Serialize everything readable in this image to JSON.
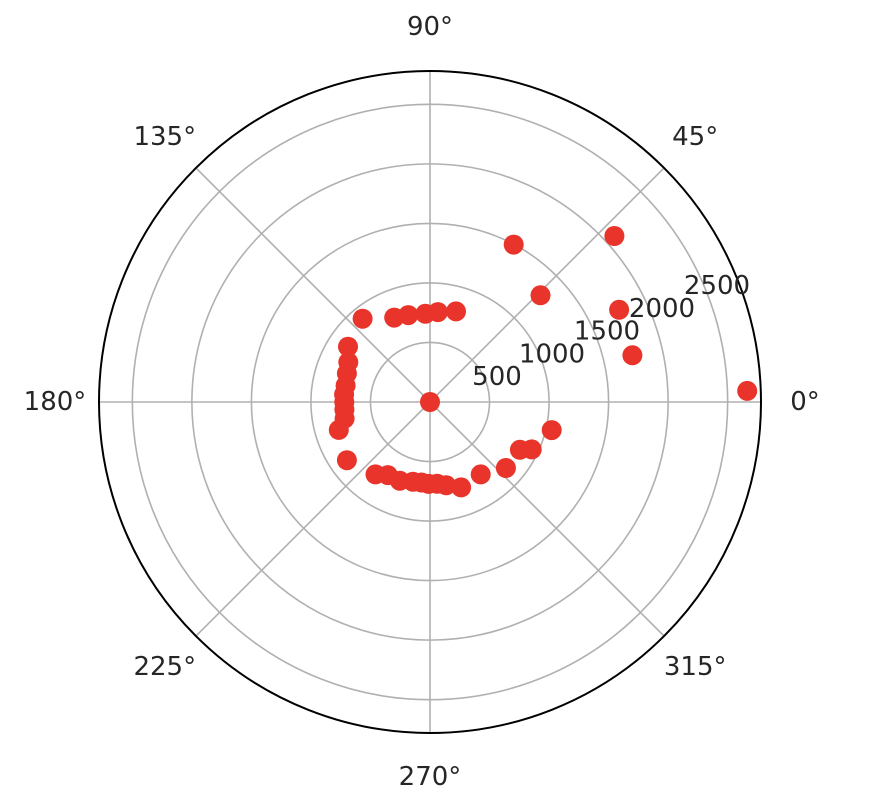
{
  "chart_data": {
    "type": "scatter",
    "projection": "polar",
    "title": "",
    "theta_ticks": [
      {
        "deg": 0,
        "label": "0°"
      },
      {
        "deg": 45,
        "label": "45°"
      },
      {
        "deg": 90,
        "label": "90°"
      },
      {
        "deg": 135,
        "label": "135°"
      },
      {
        "deg": 180,
        "label": "180°"
      },
      {
        "deg": 225,
        "label": "225°"
      },
      {
        "deg": 270,
        "label": "270°"
      },
      {
        "deg": 315,
        "label": "315°"
      }
    ],
    "r_ticks": [
      {
        "value": 500,
        "label": "500"
      },
      {
        "value": 1000,
        "label": "1000"
      },
      {
        "value": 1500,
        "label": "1500"
      },
      {
        "value": 2000,
        "label": "2000"
      },
      {
        "value": 2500,
        "label": "2500"
      }
    ],
    "rlim": [
      0,
      2780
    ],
    "grid": true,
    "color": "#e8342a",
    "points": [
      {
        "theta": 0,
        "r": 0
      },
      {
        "theta": 2,
        "r": 2666
      },
      {
        "theta": 13,
        "r": 1745
      },
      {
        "theta": 26,
        "r": 1767
      },
      {
        "theta": 44,
        "r": 1290
      },
      {
        "theta": 42,
        "r": 2084
      },
      {
        "theta": 62,
        "r": 1497
      },
      {
        "theta": 74,
        "r": 792
      },
      {
        "theta": 85,
        "r": 758
      },
      {
        "theta": 93,
        "r": 742
      },
      {
        "theta": 104,
        "r": 752
      },
      {
        "theta": 113,
        "r": 770
      },
      {
        "theta": 129,
        "r": 900
      },
      {
        "theta": 146,
        "r": 831
      },
      {
        "theta": 154,
        "r": 763
      },
      {
        "theta": 161,
        "r": 738
      },
      {
        "theta": 169,
        "r": 722
      },
      {
        "theta": 175,
        "r": 724
      },
      {
        "theta": 180,
        "r": 720
      },
      {
        "theta": 185,
        "r": 722
      },
      {
        "theta": 191,
        "r": 731
      },
      {
        "theta": 197,
        "r": 801
      },
      {
        "theta": 215,
        "r": 852
      },
      {
        "theta": 233,
        "r": 761
      },
      {
        "theta": 240,
        "r": 709
      },
      {
        "theta": 249,
        "r": 708
      },
      {
        "theta": 258,
        "r": 685
      },
      {
        "theta": 264,
        "r": 680
      },
      {
        "theta": 269,
        "r": 688
      },
      {
        "theta": 275,
        "r": 689
      },
      {
        "theta": 281,
        "r": 713
      },
      {
        "theta": 290,
        "r": 763
      },
      {
        "theta": 305,
        "r": 742
      },
      {
        "theta": 319,
        "r": 845
      },
      {
        "theta": 332,
        "r": 855
      },
      {
        "theta": 335,
        "r": 942
      },
      {
        "theta": 347,
        "r": 1049
      }
    ]
  }
}
